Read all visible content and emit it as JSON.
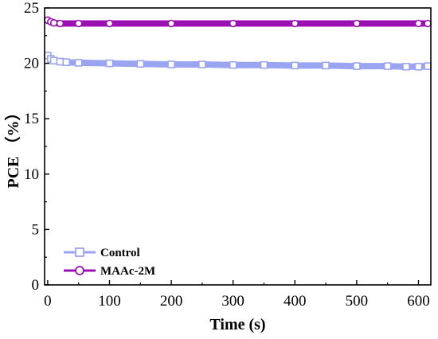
{
  "chart_data": {
    "type": "line",
    "xlabel": "Time (s)",
    "ylabel": "PCE （%）",
    "xlim": [
      -5,
      620
    ],
    "ylim": [
      0,
      25
    ],
    "xticks": [
      0,
      100,
      200,
      300,
      400,
      500,
      600
    ],
    "yticks": [
      0,
      5,
      10,
      15,
      20,
      25
    ],
    "legend_position": "bottom-left",
    "series": [
      {
        "name": "Control",
        "color": "#9aa4f0",
        "marker": "square",
        "x": [
          0,
          5,
          10,
          20,
          30,
          50,
          100,
          150,
          200,
          250,
          300,
          350,
          400,
          450,
          500,
          550,
          580,
          600,
          615
        ],
        "y": [
          20.7,
          20.4,
          20.25,
          20.15,
          20.1,
          20.05,
          20.0,
          19.95,
          19.9,
          19.9,
          19.85,
          19.85,
          19.8,
          19.8,
          19.75,
          19.75,
          19.7,
          19.7,
          19.75
        ]
      },
      {
        "name": "MAAc-2M",
        "color": "#9b10b3",
        "marker": "circle",
        "x": [
          0,
          5,
          10,
          20,
          50,
          100,
          200,
          300,
          400,
          500,
          600,
          615
        ],
        "y": [
          23.9,
          23.75,
          23.65,
          23.6,
          23.6,
          23.6,
          23.6,
          23.6,
          23.6,
          23.6,
          23.6,
          23.6
        ]
      }
    ]
  }
}
